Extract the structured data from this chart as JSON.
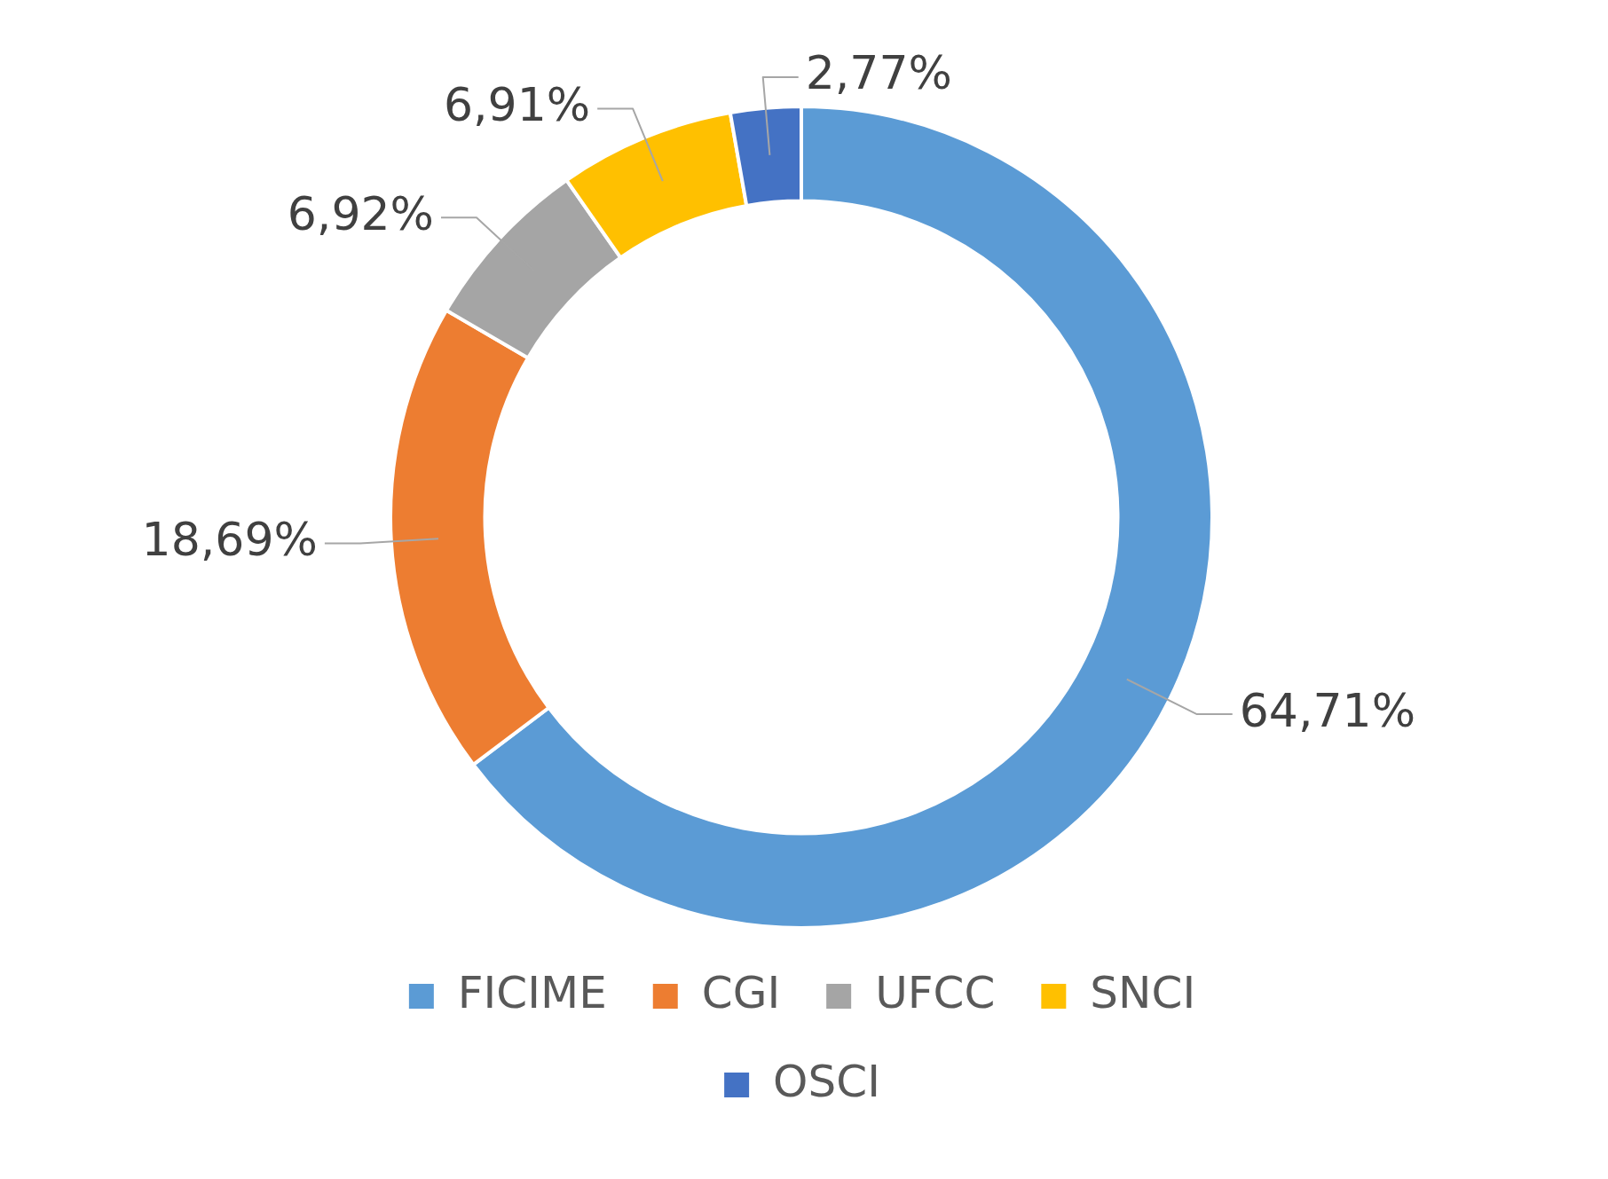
{
  "chart_data": {
    "type": "donut",
    "categories": [
      "FICIME",
      "CGI",
      "UFCC",
      "SNCI",
      "OSCI"
    ],
    "values": [
      64.71,
      18.69,
      6.92,
      6.91,
      2.77
    ],
    "colors": [
      "#5b9bd5",
      "#ed7d31",
      "#a5a5a5",
      "#ffc000",
      "#4472c4"
    ],
    "value_labels": [
      "64,71%",
      "18,69%",
      "6,92%",
      "6,91%",
      "2,77%"
    ],
    "legend": "bottom"
  }
}
